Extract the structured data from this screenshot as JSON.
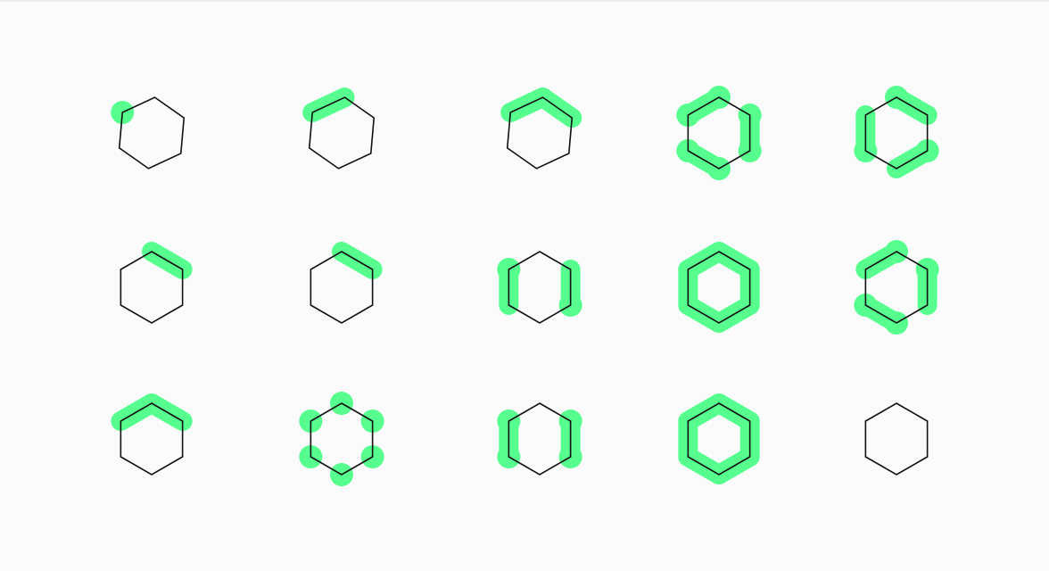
{
  "colors": {
    "background": "#fbfbfb",
    "highlight": "#57ff8f",
    "outline": "#111111"
  },
  "grid": {
    "rows": 3,
    "cols": 5
  },
  "items": [
    {
      "row": 0,
      "col": 0,
      "rotation_deg": 5,
      "highlight_edges": [],
      "highlight_vertices": [
        5
      ]
    },
    {
      "row": 0,
      "col": 1,
      "rotation_deg": 5,
      "highlight_edges": [
        5
      ],
      "highlight_vertices": []
    },
    {
      "row": 0,
      "col": 2,
      "rotation_deg": 5,
      "highlight_edges": [
        5,
        0
      ],
      "highlight_vertices": []
    },
    {
      "row": 0,
      "col": 3,
      "rotation_deg": 0,
      "highlight_edges": [
        5,
        1,
        3
      ],
      "highlight_vertices": [
        0,
        1,
        2,
        3,
        4,
        5
      ]
    },
    {
      "row": 0,
      "col": 4,
      "rotation_deg": 0,
      "highlight_edges": [
        0,
        2,
        4
      ],
      "highlight_vertices": [
        0,
        2,
        4
      ]
    },
    {
      "row": 1,
      "col": 0,
      "rotation_deg": 0,
      "highlight_edges": [
        0
      ],
      "highlight_vertices": []
    },
    {
      "row": 1,
      "col": 1,
      "rotation_deg": 0,
      "highlight_edges": [
        0
      ],
      "highlight_vertices": []
    },
    {
      "row": 1,
      "col": 2,
      "rotation_deg": 0,
      "highlight_edges": [
        1,
        4
      ],
      "highlight_vertices": [
        5,
        2
      ]
    },
    {
      "row": 1,
      "col": 3,
      "rotation_deg": 0,
      "highlight_edges": [
        0,
        1,
        2,
        3,
        4,
        5
      ],
      "highlight_vertices": []
    },
    {
      "row": 1,
      "col": 4,
      "rotation_deg": 0,
      "highlight_edges": [
        5,
        1,
        3
      ],
      "highlight_vertices": [
        0,
        1,
        3,
        4
      ]
    },
    {
      "row": 2,
      "col": 0,
      "rotation_deg": 0,
      "highlight_edges": [
        5,
        0
      ],
      "highlight_vertices": []
    },
    {
      "row": 2,
      "col": 1,
      "rotation_deg": 0,
      "highlight_edges": [],
      "highlight_vertices": [
        0,
        1,
        2,
        3,
        4,
        5
      ]
    },
    {
      "row": 2,
      "col": 2,
      "rotation_deg": 0,
      "highlight_edges": [
        1,
        4
      ],
      "highlight_vertices": [
        1,
        2,
        4,
        5
      ]
    },
    {
      "row": 2,
      "col": 3,
      "rotation_deg": 0,
      "highlight_edges": [
        0,
        1,
        2,
        3,
        4,
        5
      ],
      "highlight_vertices": []
    },
    {
      "row": 2,
      "col": 4,
      "rotation_deg": 0,
      "highlight_edges": [],
      "highlight_vertices": []
    }
  ]
}
